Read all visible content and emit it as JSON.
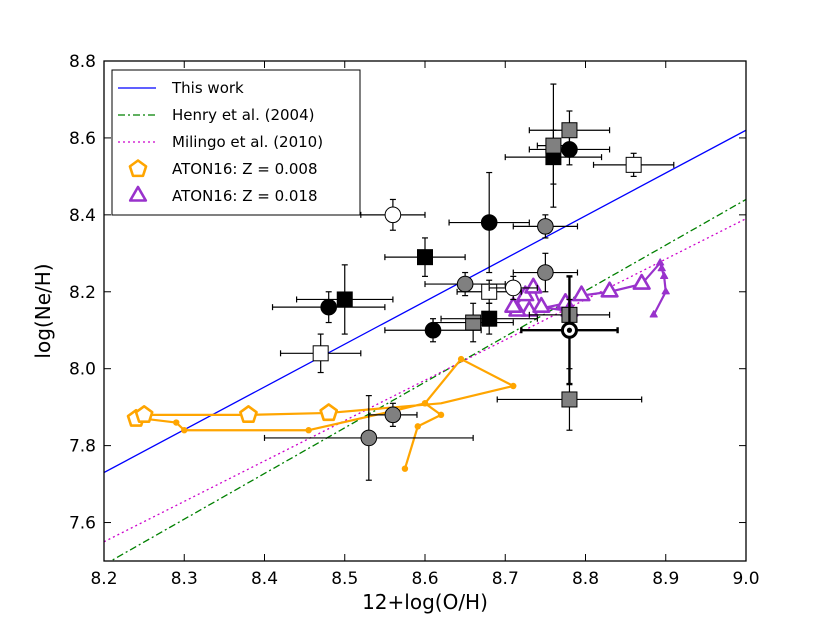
{
  "chart_data": {
    "type": "scatter",
    "xlabel": "12+log(O/H)",
    "ylabel": "log(Ne/H)",
    "xlim": [
      8.2,
      9.0
    ],
    "ylim": [
      7.5,
      8.8
    ],
    "xticks": [
      "8.2",
      "8.3",
      "8.4",
      "8.5",
      "8.6",
      "8.7",
      "8.8",
      "8.9",
      "9.0"
    ],
    "yticks": [
      "7.6",
      "7.8",
      "8.0",
      "8.2",
      "8.4",
      "8.6",
      "8.8"
    ],
    "legend_placement": "top-left",
    "lines": [
      {
        "name": "This work",
        "color": "#0000ff",
        "style": "solid",
        "x": [
          8.2,
          9.0
        ],
        "y": [
          7.73,
          8.62
        ]
      },
      {
        "name": "Henry et al. (2004)",
        "color": "#008000",
        "style": "dashdot",
        "x": [
          8.2,
          9.0
        ],
        "y": [
          7.49,
          8.44
        ]
      },
      {
        "name": "Milingo et al. (2010)",
        "color": "#cc00cc",
        "style": "dotted",
        "x": [
          8.2,
          9.0
        ],
        "y": [
          7.55,
          8.39
        ]
      }
    ],
    "model_tracks": [
      {
        "name": "ATON16: Z = 0.008",
        "color": "#ffa500",
        "marker": "pentagon",
        "points": [
          {
            "x": 8.575,
            "y": 7.74,
            "size": "small"
          },
          {
            "x": 8.591,
            "y": 7.85,
            "size": "small"
          },
          {
            "x": 8.62,
            "y": 7.88,
            "size": "small"
          },
          {
            "x": 8.6,
            "y": 7.91,
            "size": "small"
          },
          {
            "x": 8.56,
            "y": 7.89,
            "size": "small"
          },
          {
            "x": 8.455,
            "y": 7.84,
            "size": "small"
          },
          {
            "x": 8.3,
            "y": 7.84,
            "size": "small"
          },
          {
            "x": 8.29,
            "y": 7.86,
            "size": "small"
          },
          {
            "x": 8.25,
            "y": 7.87,
            "size": "small"
          },
          {
            "x": 8.24,
            "y": 7.87,
            "size": "large"
          },
          {
            "x": 8.25,
            "y": 7.88,
            "size": "large"
          },
          {
            "x": 8.38,
            "y": 7.88,
            "size": "large"
          },
          {
            "x": 8.48,
            "y": 7.885,
            "size": "large"
          },
          {
            "x": 8.62,
            "y": 7.91,
            "size": "none"
          },
          {
            "x": 8.71,
            "y": 7.955,
            "size": "small"
          },
          {
            "x": 8.645,
            "y": 8.025,
            "size": "small"
          },
          {
            "x": 8.6,
            "y": 7.91,
            "size": "small"
          }
        ]
      },
      {
        "name": "ATON16: Z = 0.018",
        "color": "#9932cc",
        "marker": "triangle",
        "points": [
          {
            "x": 8.885,
            "y": 8.14,
            "size": "small"
          },
          {
            "x": 8.9,
            "y": 8.2,
            "size": "small"
          },
          {
            "x": 8.898,
            "y": 8.24,
            "size": "small"
          },
          {
            "x": 8.895,
            "y": 8.26,
            "size": "small"
          },
          {
            "x": 8.893,
            "y": 8.275,
            "size": "small"
          },
          {
            "x": 8.87,
            "y": 8.22,
            "size": "large"
          },
          {
            "x": 8.83,
            "y": 8.2,
            "size": "large"
          },
          {
            "x": 8.795,
            "y": 8.19,
            "size": "large"
          },
          {
            "x": 8.775,
            "y": 8.17,
            "size": "large"
          },
          {
            "x": 8.73,
            "y": 8.15,
            "size": "large"
          },
          {
            "x": 8.715,
            "y": 8.15,
            "size": "large"
          },
          {
            "x": 8.71,
            "y": 8.16,
            "size": "large"
          },
          {
            "x": 8.725,
            "y": 8.19,
            "size": "large"
          },
          {
            "x": 8.735,
            "y": 8.21,
            "size": "large"
          },
          {
            "x": 8.745,
            "y": 8.16,
            "size": "large"
          },
          {
            "x": 8.78,
            "y": 8.15,
            "size": "large"
          }
        ]
      }
    ],
    "observations": [
      {
        "x": 8.48,
        "y": 8.16,
        "xerr": 0.07,
        "yerr": 0.04,
        "marker": "circle",
        "fill": "#000000"
      },
      {
        "x": 8.5,
        "y": 8.18,
        "xerr": 0.06,
        "yerr": 0.09,
        "marker": "square",
        "fill": "#000000"
      },
      {
        "x": 8.56,
        "y": 8.4,
        "xerr": 0.04,
        "yerr": 0.04,
        "marker": "circle",
        "fill": "#ffffff"
      },
      {
        "x": 8.6,
        "y": 8.29,
        "xerr": 0.05,
        "yerr": 0.05,
        "marker": "square",
        "fill": "#000000"
      },
      {
        "x": 8.61,
        "y": 8.1,
        "xerr": 0.06,
        "yerr": 0.03,
        "marker": "circle",
        "fill": "#000000"
      },
      {
        "x": 8.68,
        "y": 8.38,
        "xerr": 0.05,
        "yerr": 0.13,
        "marker": "circle",
        "fill": "#000000"
      },
      {
        "x": 8.65,
        "y": 8.22,
        "xerr": 0.05,
        "yerr": 0.03,
        "marker": "circle",
        "fill": "#808080"
      },
      {
        "x": 8.66,
        "y": 8.12,
        "xerr": 0.05,
        "yerr": 0.05,
        "marker": "square",
        "fill": "#808080"
      },
      {
        "x": 8.68,
        "y": 8.13,
        "xerr": 0.06,
        "yerr": 0.04,
        "marker": "square",
        "fill": "#000000"
      },
      {
        "x": 8.68,
        "y": 8.2,
        "xerr": 0.04,
        "yerr": 0.03,
        "marker": "square",
        "fill": "#ffffff"
      },
      {
        "x": 8.71,
        "y": 8.21,
        "xerr": 0.03,
        "yerr": 0.03,
        "marker": "circle",
        "fill": "#ffffff"
      },
      {
        "x": 8.75,
        "y": 8.37,
        "xerr": 0.04,
        "yerr": 0.03,
        "marker": "circle",
        "fill": "#808080"
      },
      {
        "x": 8.75,
        "y": 8.25,
        "xerr": 0.04,
        "yerr": 0.05,
        "marker": "circle",
        "fill": "#808080"
      },
      {
        "x": 8.76,
        "y": 8.55,
        "xerr": 0.06,
        "yerr": 0.07,
        "marker": "square",
        "fill": "#000000"
      },
      {
        "x": 8.78,
        "y": 8.57,
        "xerr": 0.05,
        "yerr": 0.04,
        "marker": "circle",
        "fill": "#000000"
      },
      {
        "x": 8.78,
        "y": 8.62,
        "xerr": 0.05,
        "yerr": 0.05,
        "marker": "square",
        "fill": "#808080"
      },
      {
        "x": 8.76,
        "y": 8.58,
        "xerr": 0.02,
        "yerr": 0.16,
        "marker": "square",
        "fill": "#808080"
      },
      {
        "x": 8.86,
        "y": 8.53,
        "xerr": 0.05,
        "yerr": 0.03,
        "marker": "square",
        "fill": "#ffffff"
      },
      {
        "x": 8.78,
        "y": 8.14,
        "xerr": 0.05,
        "yerr": 0.04,
        "marker": "square",
        "fill": "#808080"
      },
      {
        "x": 8.78,
        "y": 8.1,
        "xerr": 0.06,
        "yerr": 0.14,
        "marker": "sun",
        "fill": "#ffffff"
      },
      {
        "x": 8.78,
        "y": 7.92,
        "xerr": 0.09,
        "yerr": 0.08,
        "marker": "square",
        "fill": "#808080"
      },
      {
        "x": 8.56,
        "y": 7.88,
        "xerr": 0.03,
        "yerr": 0.03,
        "marker": "circle",
        "fill": "#808080"
      },
      {
        "x": 8.53,
        "y": 7.82,
        "xerr": 0.13,
        "yerr": 0.11,
        "marker": "circle",
        "fill": "#808080"
      },
      {
        "x": 8.47,
        "y": 8.04,
        "xerr": 0.05,
        "yerr": 0.05,
        "marker": "square",
        "fill": "#ffffff"
      }
    ],
    "legend": [
      {
        "label": "This work",
        "kind": "line",
        "color": "#0000ff",
        "style": "solid"
      },
      {
        "label": "Henry et al. (2004)",
        "kind": "line",
        "color": "#008000",
        "style": "dashdot"
      },
      {
        "label": "Milingo et al. (2010)",
        "kind": "line",
        "color": "#cc00cc",
        "style": "dotted"
      },
      {
        "label": "ATON16: Z = 0.008",
        "kind": "marker",
        "color": "#ffa500",
        "marker": "pentagon"
      },
      {
        "label": "ATON16: Z = 0.018",
        "kind": "marker",
        "color": "#9932cc",
        "marker": "triangle"
      }
    ]
  }
}
